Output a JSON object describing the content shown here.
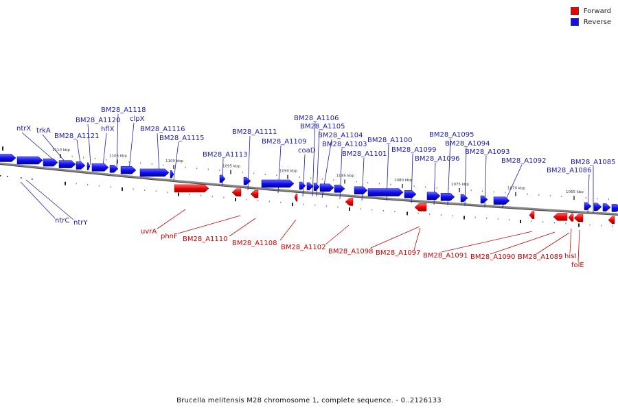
{
  "legend": {
    "forward_label": "Forward",
    "reverse_label": "Reverse",
    "forward_color": "#ee0000",
    "reverse_color": "#1010ee"
  },
  "caption": "Brucella melitensis M28 chromosome 1, complete sequence. - 0..2126133",
  "colors": {
    "backbone": "#888888",
    "forward": "#ee0000",
    "reverse": "#1010ee",
    "label_forward": "#cc0000",
    "label_reverse": "#1a1aaa"
  },
  "ticks": [
    "1110 kbp",
    "1105 kbp",
    "1100 kbp",
    "1095 kbp",
    "1090 kbp",
    "1085 kbp",
    "1080 kbp",
    "1075 kbp",
    "1070 kbp",
    "1065 kbp"
  ],
  "reverse_labels": [
    "ntrX",
    "trkA",
    "BM28_A1121",
    "BM28_A1120",
    "hflX",
    "BM28_A1118",
    "clpX",
    "BM28_A1116",
    "BM28_A1115",
    "BM28_A1113",
    "BM28_A1111",
    "BM28_A1109",
    "BM28_A1106",
    "BM28_A1105",
    "coaD",
    "BM28_A1104",
    "BM28_A1103",
    "BM28_A1101",
    "BM28_A1100",
    "BM28_A1099",
    "BM28_A1096",
    "BM28_A1095",
    "BM28_A1094",
    "BM28_A1093",
    "BM28_A1092",
    "BM28_A1086",
    "BM28_A1085",
    "ntrC",
    "ntrY"
  ],
  "forward_labels": [
    "uvrA",
    "phnF",
    "BM28_A1110",
    "BM28_A1108",
    "BM28_A1102",
    "BM28_A1098",
    "BM28_A1097",
    "BM28_A1091",
    "BM28_A1090",
    "BM28_A1089",
    "hisI",
    "folE"
  ]
}
